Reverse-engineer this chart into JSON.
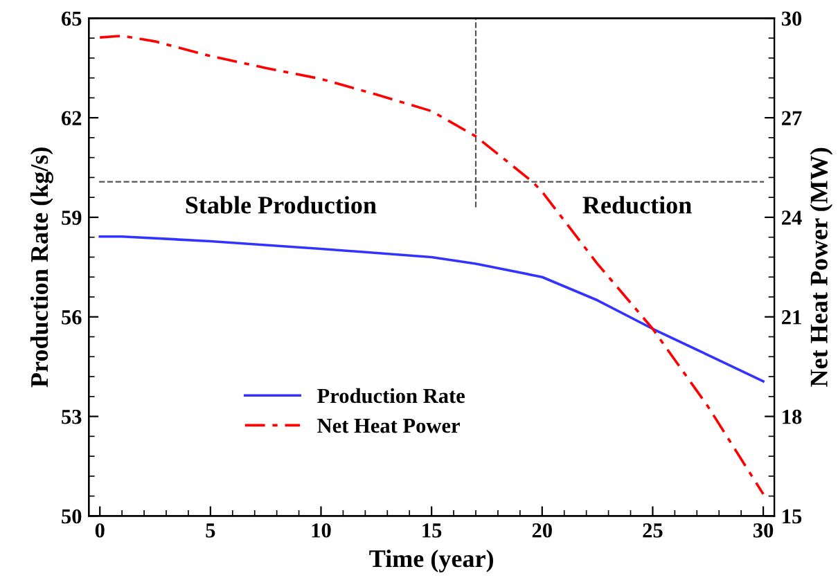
{
  "chart_data": {
    "type": "line",
    "xlabel": "Time (year)",
    "ylabel": "Production Rate (kg/s)",
    "y2label": "Net Heat Power (MW)",
    "xlim": [
      -0.5,
      30.5
    ],
    "xticks": [
      0,
      5,
      10,
      15,
      20,
      25,
      30
    ],
    "ylim": [
      50,
      65
    ],
    "yticks": [
      50,
      53,
      56,
      59,
      62,
      65
    ],
    "y2lim": [
      15,
      30
    ],
    "y2ticks": [
      15,
      18,
      21,
      24,
      27,
      30
    ],
    "grid": false,
    "legend": "lower left",
    "marker": "none",
    "series": [
      {
        "name": "Production Rate",
        "color": "#3333ff",
        "line_style": "solid",
        "x": [
          0,
          1,
          5,
          10,
          15,
          17,
          20,
          22.5,
          25,
          27.5,
          30
        ],
        "values": [
          58.42,
          58.42,
          58.28,
          58.05,
          57.8,
          57.6,
          57.2,
          56.5,
          55.64,
          54.85,
          54.06
        ]
      },
      {
        "name": "Net Heat Power",
        "color": "#ff0000",
        "line_style": "dashdot",
        "axis": "y2",
        "x": [
          0,
          1,
          2.5,
          5,
          7.5,
          10,
          12.5,
          15,
          17,
          19.6,
          20,
          22.5,
          25,
          27.5,
          30
        ],
        "values": [
          29.42,
          29.47,
          29.3,
          28.86,
          28.5,
          28.17,
          27.7,
          27.2,
          26.44,
          25.05,
          24.77,
          22.6,
          20.64,
          18.3,
          15.66
        ]
      }
    ],
    "ref_lines": [
      {
        "axis": "x",
        "value": 17,
        "color": "#555555",
        "line_style": "dashed"
      },
      {
        "axis": "y",
        "value": 60.07,
        "color": "#555555",
        "line_style": "dashed"
      }
    ],
    "annotations": [
      "Stable Production",
      "Reduction"
    ]
  }
}
